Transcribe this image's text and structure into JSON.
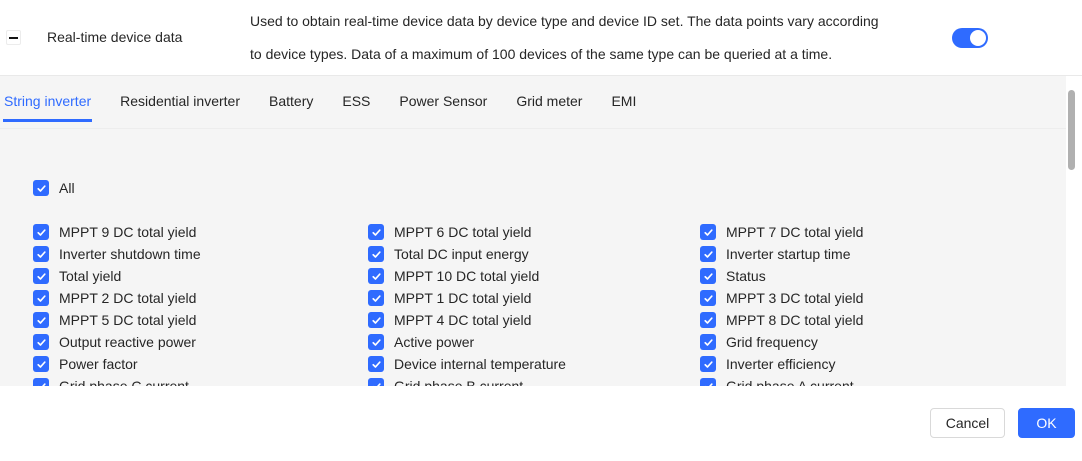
{
  "colors": {
    "accent_blue": "#2F6BFF",
    "content_background": "#F5F5F5",
    "text_primary": "#262626",
    "scrollbar_thumb": "#B0B0B0"
  },
  "header": {
    "collapse_control": "minus",
    "title": "Real-time device data",
    "description_line1": "Used to obtain real-time device data by device type and device ID set. The data points vary according",
    "description_line2": "to device types. Data of a maximum of 100 devices of the same type can be queried at a time.",
    "toggle_state": "on"
  },
  "tabs": [
    {
      "label": "String inverter",
      "active": true
    },
    {
      "label": "Residential inverter",
      "active": false
    },
    {
      "label": "Battery",
      "active": false
    },
    {
      "label": "ESS",
      "active": false
    },
    {
      "label": "Power Sensor",
      "active": false
    },
    {
      "label": "Grid meter",
      "active": false
    },
    {
      "label": "EMI",
      "active": false
    }
  ],
  "select_all": {
    "label": "All",
    "checked": true
  },
  "checkbox_columns": [
    {
      "items": [
        {
          "label": "MPPT 9 DC total yield",
          "checked": true
        },
        {
          "label": "Inverter shutdown time",
          "checked": true
        },
        {
          "label": "Total yield",
          "checked": true
        },
        {
          "label": "MPPT 2 DC total yield",
          "checked": true
        },
        {
          "label": "MPPT 5 DC total yield",
          "checked": true
        },
        {
          "label": "Output reactive power",
          "checked": true
        },
        {
          "label": "Power factor",
          "checked": true
        },
        {
          "label": "Grid phase C current",
          "checked": true
        }
      ]
    },
    {
      "items": [
        {
          "label": "MPPT 6 DC total yield",
          "checked": true
        },
        {
          "label": "Total DC input energy",
          "checked": true
        },
        {
          "label": "MPPT 10 DC total yield",
          "checked": true
        },
        {
          "label": "MPPT 1 DC total yield",
          "checked": true
        },
        {
          "label": "MPPT 4 DC total yield",
          "checked": true
        },
        {
          "label": "Active power",
          "checked": true
        },
        {
          "label": "Device internal temperature",
          "checked": true
        },
        {
          "label": "Grid phase B current",
          "checked": true
        }
      ]
    },
    {
      "items": [
        {
          "label": "MPPT 7 DC total yield",
          "checked": true
        },
        {
          "label": "Inverter startup time",
          "checked": true
        },
        {
          "label": "Status",
          "checked": true
        },
        {
          "label": "MPPT 3 DC total yield",
          "checked": true
        },
        {
          "label": "MPPT 8 DC total yield",
          "checked": true
        },
        {
          "label": "Grid frequency",
          "checked": true
        },
        {
          "label": "Inverter efficiency",
          "checked": true
        },
        {
          "label": "Grid phase A current",
          "checked": true
        }
      ]
    }
  ],
  "footer": {
    "cancel_label": "Cancel",
    "ok_label": "OK"
  }
}
